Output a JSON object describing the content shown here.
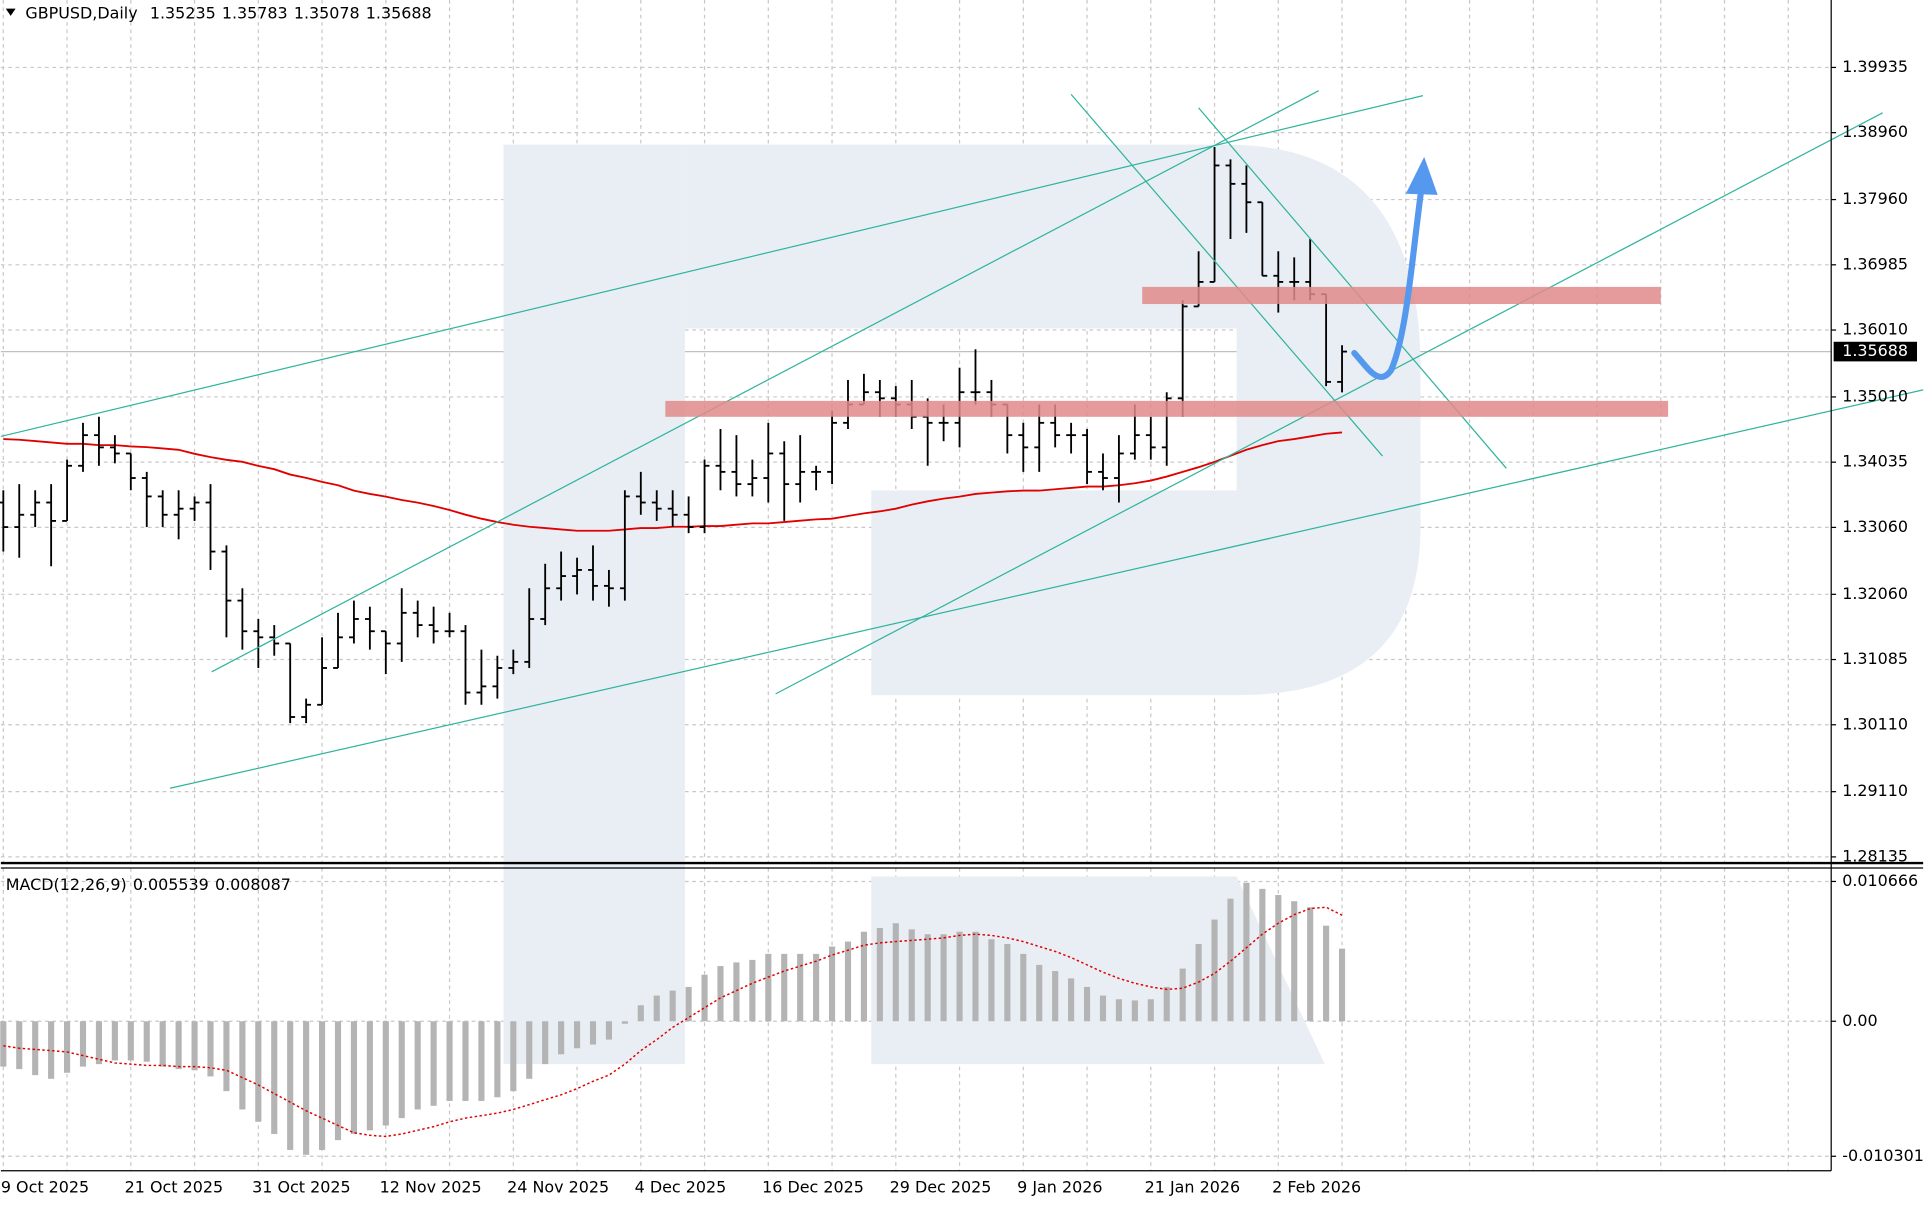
{
  "chart_data": [
    {
      "type": "ohlc",
      "title": "GBPUSD,Daily",
      "color": "#000000",
      "grid": true,
      "categories": [
        "9 Oct 2025",
        null,
        null,
        null,
        null,
        null,
        null,
        null,
        "21 Oct 2025",
        null,
        null,
        null,
        null,
        null,
        null,
        null,
        "31 Oct 2025",
        null,
        null,
        null,
        null,
        null,
        null,
        null,
        "12 Nov 2025",
        null,
        null,
        null,
        null,
        null,
        null,
        null,
        "24 Nov 2025",
        null,
        null,
        null,
        null,
        null,
        null,
        null,
        "4 Dec 2025",
        null,
        null,
        null,
        null,
        null,
        null,
        null,
        "16 Dec 2025",
        null,
        null,
        null,
        null,
        null,
        null,
        null,
        "29 Dec 2025",
        null,
        null,
        null,
        null,
        null,
        null,
        null,
        "9 Jan 2026",
        null,
        null,
        null,
        null,
        null,
        null,
        null,
        "21 Jan 2026",
        null,
        null,
        null,
        null,
        null,
        null,
        null,
        "2 Feb 2026",
        null,
        null,
        null,
        null
      ],
      "open": [
        1.33432,
        1.33065,
        1.33249,
        1.33432,
        1.33157,
        1.33981,
        1.34439,
        1.34256,
        1.34165,
        1.33798,
        1.33523,
        1.33249,
        1.3334,
        1.33432,
        1.32699,
        1.31966,
        1.31508,
        1.31417,
        1.31325,
        1.30226,
        1.30409,
        1.30959,
        1.31417,
        1.31691,
        1.31508,
        1.31325,
        1.31783,
        1.316,
        1.31508,
        1.31508,
        1.30592,
        1.30684,
        1.30959,
        1.3105,
        1.31691,
        1.3215,
        1.32333,
        1.32424,
        1.32186,
        1.3215,
        1.33523,
        1.33432,
        1.3334,
        1.33249,
        1.33065,
        1.33981,
        1.3389,
        1.33707,
        1.33798,
        1.34165,
        1.33707,
        1.3389,
        1.3389,
        1.34623,
        1.34897,
        1.35081,
        1.34989,
        1.34897,
        1.34714,
        1.34623,
        1.34623,
        1.35081,
        1.35081,
        1.34897,
        1.34439,
        1.34256,
        1.34623,
        1.34439,
        1.34439,
        1.3389,
        1.33798,
        1.34165,
        1.34439,
        1.34256,
        1.34989,
        1.36363,
        1.36729,
        1.3847,
        1.38195,
        1.3792,
        1.36821,
        1.36729,
        1.36729,
        1.36546,
        1.35235
      ],
      "high": [
        1.33615,
        1.33707,
        1.33615,
        1.33707,
        1.34073,
        1.34623,
        1.34714,
        1.34439,
        1.34165,
        1.3389,
        1.33615,
        1.33615,
        1.33523,
        1.33707,
        1.32791,
        1.3215,
        1.31691,
        1.316,
        1.31325,
        1.30501,
        1.31417,
        1.31783,
        1.31966,
        1.31875,
        1.31508,
        1.3215,
        1.31966,
        1.31875,
        1.31783,
        1.316,
        1.31233,
        1.31142,
        1.31233,
        1.3215,
        1.32516,
        1.32699,
        1.32607,
        1.32791,
        1.32424,
        1.33615,
        1.3389,
        1.33615,
        1.33615,
        1.33523,
        1.34073,
        1.34531,
        1.34439,
        1.34073,
        1.34623,
        1.34348,
        1.34439,
        1.33981,
        1.34806,
        1.35264,
        1.35355,
        1.35264,
        1.35172,
        1.35264,
        1.34989,
        1.34897,
        1.35447,
        1.35722,
        1.35264,
        1.34897,
        1.34623,
        1.34897,
        1.34897,
        1.34623,
        1.34531,
        1.34165,
        1.34439,
        1.34897,
        1.34714,
        1.35081,
        1.36455,
        1.37187,
        1.38745,
        1.38561,
        1.3847,
        1.3792,
        1.37187,
        1.37096,
        1.37371,
        1.36546,
        1.35783
      ],
      "low": [
        1.32699,
        1.32607,
        1.33065,
        1.32479,
        1.33157,
        1.3389,
        1.33981,
        1.34018,
        1.33615,
        1.33065,
        1.33065,
        1.32882,
        1.33157,
        1.32424,
        1.31417,
        1.31233,
        1.30959,
        1.31142,
        1.30135,
        1.30135,
        1.30409,
        1.30959,
        1.31325,
        1.31233,
        1.30867,
        1.3105,
        1.31417,
        1.31325,
        1.31417,
        1.30409,
        1.30409,
        1.30501,
        1.30867,
        1.30959,
        1.316,
        1.31966,
        1.32058,
        1.31966,
        1.31875,
        1.31966,
        1.33249,
        1.33157,
        1.33065,
        1.32974,
        1.32974,
        1.33615,
        1.33523,
        1.33523,
        1.33432,
        1.33157,
        1.33432,
        1.33615,
        1.33707,
        1.34531,
        1.34897,
        1.34714,
        1.34714,
        1.34531,
        1.33981,
        1.34348,
        1.34256,
        1.34897,
        1.34714,
        1.34165,
        1.3389,
        1.3389,
        1.34256,
        1.34165,
        1.33707,
        1.33615,
        1.33432,
        1.34073,
        1.34073,
        1.33981,
        1.34714,
        1.36363,
        1.36729,
        1.37371,
        1.37462,
        1.36821,
        1.36271,
        1.36455,
        1.36455,
        1.35172,
        1.35078
      ],
      "close": [
        1.33065,
        1.33249,
        1.33432,
        1.33157,
        1.33981,
        1.34439,
        1.34256,
        1.34165,
        1.33798,
        1.33523,
        1.33249,
        1.3334,
        1.33432,
        1.32699,
        1.31966,
        1.31508,
        1.31417,
        1.31325,
        1.30226,
        1.30409,
        1.30959,
        1.31417,
        1.31691,
        1.31508,
        1.31325,
        1.31783,
        1.316,
        1.31508,
        1.31508,
        1.30592,
        1.30684,
        1.30959,
        1.3105,
        1.31691,
        1.3215,
        1.32333,
        1.32424,
        1.32186,
        1.3215,
        1.33523,
        1.33432,
        1.3334,
        1.33249,
        1.33065,
        1.33981,
        1.3389,
        1.33707,
        1.33798,
        1.34165,
        1.33707,
        1.3389,
        1.3389,
        1.34623,
        1.34897,
        1.35081,
        1.34989,
        1.34897,
        1.34714,
        1.34623,
        1.34623,
        1.35081,
        1.35081,
        1.34897,
        1.34439,
        1.34256,
        1.34623,
        1.34439,
        1.34439,
        1.3389,
        1.33798,
        1.34165,
        1.34439,
        1.34256,
        1.34989,
        1.36363,
        1.36729,
        1.3847,
        1.38195,
        1.3792,
        1.36821,
        1.36729,
        1.36729,
        1.36546,
        1.35235,
        1.35688
      ],
      "ma": {
        "color": "#e00000",
        "values": [
          1.3438,
          1.3437,
          1.3435,
          1.3433,
          1.3431,
          1.3431,
          1.3429,
          1.3429,
          1.3427,
          1.3426,
          1.3424,
          1.3422,
          1.3416,
          1.3411,
          1.3407,
          1.3404,
          1.3398,
          1.3393,
          1.3385,
          1.338,
          1.3374,
          1.3369,
          1.3361,
          1.3356,
          1.3352,
          1.3347,
          1.3343,
          1.3338,
          1.3332,
          1.3325,
          1.3319,
          1.3314,
          1.331,
          1.3307,
          1.3305,
          1.3303,
          1.3301,
          1.3301,
          1.3301,
          1.3303,
          1.3305,
          1.3305,
          1.3307,
          1.3307,
          1.3308,
          1.3308,
          1.331,
          1.3312,
          1.3312,
          1.3314,
          1.3316,
          1.3318,
          1.3319,
          1.3323,
          1.3327,
          1.333,
          1.3334,
          1.334,
          1.3345,
          1.3349,
          1.3352,
          1.3356,
          1.3358,
          1.336,
          1.3361,
          1.3361,
          1.3363,
          1.3365,
          1.3367,
          1.3367,
          1.3369,
          1.3372,
          1.3376,
          1.3382,
          1.3389,
          1.3396,
          1.3404,
          1.3413,
          1.3422,
          1.3429,
          1.3435,
          1.3438,
          1.3442,
          1.3446,
          1.3448
        ]
      },
      "ylim": [
        1.28043,
        1.40943
      ],
      "yticks": [
        1.28135,
        {
          "value": 1.2911,
          "label": "1.29110"
        },
        {
          "value": 1.3011,
          "label": "1.30110"
        },
        1.31085,
        {
          "value": 1.3206,
          "label": "1.32060"
        },
        {
          "value": 1.3306,
          "label": "1.33060"
        },
        1.34035,
        {
          "value": 1.3501,
          "label": "1.35010"
        },
        {
          "value": 1.3601,
          "label": "1.36010"
        },
        1.36985,
        {
          "value": 1.3796,
          "label": "1.37960"
        },
        {
          "value": 1.3896,
          "label": "1.38960"
        },
        1.39935
      ]
    },
    {
      "type": "macd",
      "title": "MACD(12,26,9)",
      "grid": true,
      "histogram": {
        "color": "#b4b4b4",
        "values": [
          -0.00346,
          -0.00365,
          -0.00411,
          -0.00439,
          -0.00393,
          -0.00346,
          -0.00327,
          -0.00299,
          -0.00299,
          -0.00309,
          -0.00346,
          -0.00365,
          -0.00374,
          -0.00421,
          -0.00533,
          -0.00673,
          -0.00767,
          -0.0086,
          -0.00982,
          -0.01019,
          -0.00982,
          -0.00907,
          -0.0086,
          -0.00832,
          -0.00795,
          -0.00739,
          -0.00673,
          -0.00645,
          -0.00608,
          -0.00608,
          -0.00608,
          -0.0058,
          -0.00533,
          -0.00439,
          -0.00327,
          -0.00252,
          -0.00206,
          -0.00178,
          -0.0014,
          -0.00019,
          0.00122,
          0.00196,
          0.00234,
          0.00262,
          0.00355,
          0.00421,
          0.00449,
          0.00468,
          0.00514,
          0.00514,
          0.00514,
          0.00514,
          0.0057,
          0.00608,
          0.00683,
          0.00711,
          0.00748,
          0.00701,
          0.00664,
          0.00664,
          0.00683,
          0.00683,
          0.00626,
          0.00589,
          0.00514,
          0.0043,
          0.00383,
          0.00327,
          0.00262,
          0.00196,
          0.00168,
          0.00159,
          0.00168,
          0.00262,
          0.00402,
          0.00589,
          0.00776,
          0.00935,
          0.01057,
          0.0101,
          0.00963,
          0.00916,
          0.0087,
          0.00729,
          0.005539
        ]
      },
      "signal": {
        "color": "#e00000",
        "values": [
          -0.00187,
          -0.00206,
          -0.00215,
          -0.00224,
          -0.00234,
          -0.00262,
          -0.0029,
          -0.00318,
          -0.00327,
          -0.00337,
          -0.00337,
          -0.00346,
          -0.00346,
          -0.00355,
          -0.00374,
          -0.0043,
          -0.00486,
          -0.00552,
          -0.00617,
          -0.00683,
          -0.00739,
          -0.00795,
          -0.00851,
          -0.0087,
          -0.00879,
          -0.0086,
          -0.00832,
          -0.00804,
          -0.00767,
          -0.00739,
          -0.0072,
          -0.00701,
          -0.00673,
          -0.00636,
          -0.00598,
          -0.00561,
          -0.00514,
          -0.00458,
          -0.00411,
          -0.00327,
          -0.00224,
          -0.0014,
          -0.00047,
          0.00028,
          0.00103,
          0.00178,
          0.00234,
          0.0029,
          0.00337,
          0.00383,
          0.00421,
          0.00458,
          0.00505,
          0.00542,
          0.0058,
          0.00598,
          0.00608,
          0.00617,
          0.00626,
          0.00636,
          0.00655,
          0.00664,
          0.00655,
          0.00636,
          0.00608,
          0.0057,
          0.00533,
          0.00486,
          0.0043,
          0.00374,
          0.00327,
          0.0029,
          0.00262,
          0.00243,
          0.00252,
          0.00299,
          0.00365,
          0.00458,
          0.00561,
          0.00664,
          0.00748,
          0.00813,
          0.0086,
          0.0087,
          0.008087
        ]
      },
      "ylim": [
        -0.011407,
        0.011695
      ],
      "yticks": [
        0.010666,
        {
          "value": 0,
          "label": "0.00"
        },
        -0.010301
      ]
    }
  ]
}
